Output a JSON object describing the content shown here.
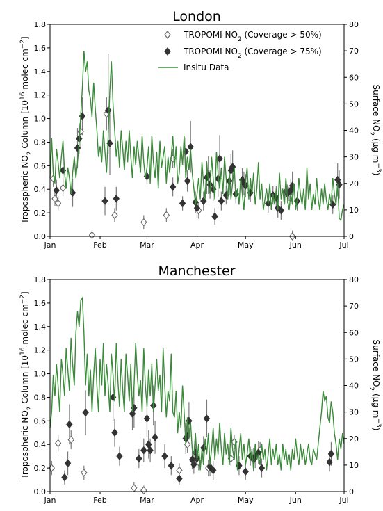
{
  "chart_data": [
    {
      "type": "line",
      "title": "London",
      "ylabel_left": "Tropospheric NO₂ Column [10¹⁶ molec cm⁻²]",
      "ylabel_right": "Surface NO₂ (µg m⁻³)",
      "xlim_days": [
        0,
        182
      ],
      "ylim_left": [
        0,
        1.8
      ],
      "ylim_right": [
        0,
        80
      ],
      "x_ticks": [
        {
          "label": "Jan",
          "day": 0
        },
        {
          "label": "Feb",
          "day": 31
        },
        {
          "label": "Mar",
          "day": 60
        },
        {
          "label": "Apr",
          "day": 91
        },
        {
          "label": "May",
          "day": 121
        },
        {
          "label": "Jun",
          "day": 152
        },
        {
          "label": "Jul",
          "day": 182
        }
      ],
      "y_ticks_left": [
        "0.0",
        "0.2",
        "0.4",
        "0.6",
        "0.8",
        "1.0",
        "1.2",
        "1.4",
        "1.6",
        "1.8"
      ],
      "y_ticks_right": [
        "0",
        "10",
        "20",
        "30",
        "40",
        "50",
        "60",
        "70",
        "80"
      ],
      "legend": [
        {
          "label": "TROPOMI NO",
          "sub": "2",
          "after": " (Coverage > 50%)",
          "marker": "open-diamond"
        },
        {
          "label": "TROPOMI NO",
          "sub": "2",
          "after": " (Coverage > 75%)",
          "marker": "filled-diamond"
        },
        {
          "label": "Insitu Data",
          "marker": "line"
        }
      ],
      "colors": {
        "insitu": "#3a8a3a",
        "filled": "#333333",
        "open_edge": "#666666",
        "errorbar": "#7a7a7a"
      },
      "insitu_day_start": 0,
      "insitu_day_step": 1,
      "insitu": [
        22,
        37,
        24,
        20,
        33,
        28,
        22,
        30,
        36,
        24,
        18,
        26,
        22,
        16,
        24,
        30,
        22,
        28,
        35,
        46,
        56,
        70,
        62,
        66,
        55,
        52,
        45,
        58,
        48,
        40,
        30,
        34,
        28,
        40,
        32,
        24,
        38,
        55,
        66,
        50,
        40,
        30,
        36,
        26,
        40,
        33,
        25,
        36,
        28,
        40,
        30,
        22,
        34,
        27,
        36,
        30,
        24,
        38,
        28,
        22,
        26,
        34,
        20,
        38,
        28,
        22,
        32,
        18,
        36,
        26,
        30,
        34,
        20,
        30,
        24,
        30,
        38,
        26,
        34,
        20,
        24,
        34,
        27,
        38,
        22,
        30,
        25,
        33,
        24,
        18,
        12,
        16,
        22,
        14,
        28,
        20,
        14,
        28,
        20,
        16,
        30,
        22,
        14,
        32,
        24,
        18,
        26,
        16,
        30,
        22,
        14,
        24,
        14,
        20,
        26,
        14,
        18,
        12,
        22,
        16,
        10,
        20,
        26,
        14,
        22,
        16,
        24,
        12,
        18,
        28,
        14,
        20,
        10,
        14,
        18,
        12,
        20,
        10,
        16,
        12,
        18,
        10,
        24,
        14,
        18,
        12,
        22,
        14,
        10,
        16,
        12,
        20,
        10,
        14,
        22,
        16,
        12,
        18,
        10,
        26,
        14,
        20,
        10,
        16,
        12,
        22,
        14,
        10,
        18,
        12,
        20,
        14,
        10,
        16,
        12,
        22,
        16,
        12,
        20,
        7,
        6,
        10,
        12
      ],
      "sat_high": [
        {
          "day": 4,
          "y": 0.39,
          "lo": 0.3,
          "hi": 0.48
        },
        {
          "day": 8,
          "y": 0.56,
          "lo": 0.46,
          "hi": 0.66
        },
        {
          "day": 14,
          "y": 0.37,
          "lo": 0.25,
          "hi": 0.49
        },
        {
          "day": 17,
          "y": 0.75,
          "lo": 0.58,
          "hi": 0.92
        },
        {
          "day": 18,
          "y": 0.83,
          "lo": 0.7,
          "hi": 0.96
        },
        {
          "day": 20,
          "y": 1.02,
          "lo": 0.86,
          "hi": 1.18
        },
        {
          "day": 34,
          "y": 0.3,
          "lo": 0.18,
          "hi": 0.42
        },
        {
          "day": 36,
          "y": 1.07,
          "lo": 0.7,
          "hi": 1.55
        },
        {
          "day": 37,
          "y": 0.79,
          "lo": 0.52,
          "hi": 1.06
        },
        {
          "day": 41,
          "y": 0.32,
          "lo": 0.22,
          "hi": 0.42
        },
        {
          "day": 60,
          "y": 0.51,
          "lo": 0.44,
          "hi": 0.58
        },
        {
          "day": 76,
          "y": 0.42,
          "lo": 0.34,
          "hi": 0.5
        },
        {
          "day": 82,
          "y": 0.28,
          "lo": 0.22,
          "hi": 0.34
        },
        {
          "day": 84,
          "y": 0.72,
          "lo": 0.6,
          "hi": 0.84
        },
        {
          "day": 85,
          "y": 0.47,
          "lo": 0.38,
          "hi": 0.56
        },
        {
          "day": 87,
          "y": 0.76,
          "lo": 0.54,
          "hi": 0.98
        },
        {
          "day": 90,
          "y": 0.29,
          "lo": 0.2,
          "hi": 0.38
        },
        {
          "day": 91,
          "y": 0.24,
          "lo": 0.16,
          "hi": 0.32
        },
        {
          "day": 95,
          "y": 0.3,
          "lo": 0.22,
          "hi": 0.38
        },
        {
          "day": 97,
          "y": 0.5,
          "lo": 0.36,
          "hi": 0.64
        },
        {
          "day": 98,
          "y": 0.52,
          "lo": 0.36,
          "hi": 0.68
        },
        {
          "day": 99,
          "y": 0.44,
          "lo": 0.32,
          "hi": 0.56
        },
        {
          "day": 101,
          "y": 0.4,
          "lo": 0.3,
          "hi": 0.5
        },
        {
          "day": 102,
          "y": 0.17,
          "lo": 0.1,
          "hi": 0.24
        },
        {
          "day": 104,
          "y": 0.49,
          "lo": 0.33,
          "hi": 0.65
        },
        {
          "day": 105,
          "y": 0.66,
          "lo": 0.46,
          "hi": 0.86
        },
        {
          "day": 106,
          "y": 0.3,
          "lo": 0.22,
          "hi": 0.38
        },
        {
          "day": 109,
          "y": 0.35,
          "lo": 0.27,
          "hi": 0.43
        },
        {
          "day": 111,
          "y": 0.47,
          "lo": 0.35,
          "hi": 0.59
        },
        {
          "day": 112,
          "y": 0.56,
          "lo": 0.42,
          "hi": 0.7
        },
        {
          "day": 113,
          "y": 0.59,
          "lo": 0.45,
          "hi": 0.73
        },
        {
          "day": 115,
          "y": 0.36,
          "lo": 0.28,
          "hi": 0.44
        },
        {
          "day": 119,
          "y": 0.48,
          "lo": 0.38,
          "hi": 0.58
        },
        {
          "day": 120,
          "y": 0.45,
          "lo": 0.35,
          "hi": 0.55
        },
        {
          "day": 121,
          "y": 0.43,
          "lo": 0.33,
          "hi": 0.53
        },
        {
          "day": 124,
          "y": 0.37,
          "lo": 0.29,
          "hi": 0.45
        },
        {
          "day": 135,
          "y": 0.28,
          "lo": 0.2,
          "hi": 0.36
        },
        {
          "day": 138,
          "y": 0.35,
          "lo": 0.27,
          "hi": 0.43
        },
        {
          "day": 140,
          "y": 0.33,
          "lo": 0.23,
          "hi": 0.43
        },
        {
          "day": 141,
          "y": 0.24,
          "lo": 0.16,
          "hi": 0.32
        },
        {
          "day": 143,
          "y": 0.22,
          "lo": 0.14,
          "hi": 0.3
        },
        {
          "day": 146,
          "y": 0.38,
          "lo": 0.28,
          "hi": 0.48
        },
        {
          "day": 147,
          "y": 0.36,
          "lo": 0.28,
          "hi": 0.44
        },
        {
          "day": 149,
          "y": 0.39,
          "lo": 0.29,
          "hi": 0.49
        },
        {
          "day": 150,
          "y": 0.43,
          "lo": 0.31,
          "hi": 0.55
        },
        {
          "day": 153,
          "y": 0.3,
          "lo": 0.22,
          "hi": 0.38
        },
        {
          "day": 175,
          "y": 0.27,
          "lo": 0.19,
          "hi": 0.35
        },
        {
          "day": 178,
          "y": 0.48,
          "lo": 0.34,
          "hi": 0.62
        },
        {
          "day": 179,
          "y": 0.44,
          "lo": 0.32,
          "hi": 0.56
        }
      ],
      "sat_low": [
        {
          "day": 2,
          "y": 0.49,
          "lo": 0.42,
          "hi": 0.56
        },
        {
          "day": 3,
          "y": 0.32,
          "lo": 0.26,
          "hi": 0.38
        },
        {
          "day": 5,
          "y": 0.28,
          "lo": 0.22,
          "hi": 0.34
        },
        {
          "day": 8,
          "y": 0.41,
          "lo": 0.34,
          "hi": 0.48
        },
        {
          "day": 19,
          "y": 0.89,
          "lo": 0.76,
          "hi": 1.02
        },
        {
          "day": 35,
          "y": 1.04,
          "lo": 0.9,
          "hi": 1.18
        },
        {
          "day": 26,
          "y": 0.01,
          "lo": 0.0,
          "hi": 0.05
        },
        {
          "day": 40,
          "y": 0.18,
          "lo": 0.12,
          "hi": 0.24
        },
        {
          "day": 58,
          "y": 0.12,
          "lo": 0.06,
          "hi": 0.18
        },
        {
          "day": 72,
          "y": 0.18,
          "lo": 0.12,
          "hi": 0.24
        },
        {
          "day": 76,
          "y": 0.66,
          "lo": 0.58,
          "hi": 0.74
        },
        {
          "day": 92,
          "y": 0.22,
          "lo": 0.15,
          "hi": 0.29
        },
        {
          "day": 150,
          "y": 0.0,
          "lo": 0.0,
          "hi": 0.05
        },
        {
          "day": 148,
          "y": 0.36,
          "lo": 0.3,
          "hi": 0.42
        }
      ]
    },
    {
      "type": "line",
      "title": "Manchester",
      "ylabel_left": "Tropospheric NO₂ Column [10¹⁶ molec cm⁻²]",
      "ylabel_right": "Surface NO₂ (µg m⁻³)",
      "xlim_days": [
        0,
        182
      ],
      "ylim_left": [
        0,
        1.8
      ],
      "ylim_right": [
        0,
        80
      ],
      "x_ticks": [
        {
          "label": "Jan",
          "day": 0
        },
        {
          "label": "Feb",
          "day": 31
        },
        {
          "label": "Mar",
          "day": 60
        },
        {
          "label": "Apr",
          "day": 91
        },
        {
          "label": "May",
          "day": 121
        },
        {
          "label": "Jun",
          "day": 152
        },
        {
          "label": "Jul",
          "day": 182
        }
      ],
      "y_ticks_left": [
        "0.0",
        "0.2",
        "0.4",
        "0.6",
        "0.8",
        "1.0",
        "1.2",
        "1.4",
        "1.6",
        "1.8"
      ],
      "y_ticks_right": [
        "0",
        "10",
        "20",
        "30",
        "40",
        "50",
        "60",
        "70",
        "80"
      ],
      "colors": {
        "insitu": "#3a8a3a",
        "filled": "#333333",
        "open_edge": "#666666",
        "errorbar": "#7a7a7a"
      },
      "insitu_day_start": 0,
      "insitu_day_step": 1,
      "insitu": [
        24,
        30,
        44,
        36,
        48,
        40,
        30,
        50,
        44,
        36,
        54,
        46,
        38,
        58,
        48,
        40,
        60,
        68,
        62,
        72,
        73,
        60,
        40,
        52,
        36,
        46,
        30,
        44,
        54,
        40,
        30,
        50,
        40,
        56,
        36,
        48,
        40,
        30,
        52,
        44,
        34,
        56,
        42,
        32,
        50,
        38,
        30,
        52,
        44,
        34,
        48,
        30,
        40,
        56,
        44,
        36,
        42,
        30,
        54,
        40,
        32,
        46,
        36,
        48,
        30,
        40,
        50,
        38,
        44,
        30,
        54,
        40,
        28,
        38,
        34,
        52,
        30,
        28,
        38,
        22,
        30,
        24,
        40,
        30,
        18,
        28,
        20,
        26,
        16,
        14,
        22,
        12,
        18,
        8,
        16,
        10,
        20,
        14,
        22,
        10,
        16,
        24,
        12,
        20,
        14,
        26,
        16,
        10,
        22,
        14,
        18,
        10,
        24,
        16,
        12,
        20,
        8,
        16,
        22,
        12,
        18,
        10,
        14,
        20,
        12,
        16,
        8,
        18,
        12,
        14,
        10,
        18,
        12,
        16,
        8,
        14,
        20,
        10,
        16,
        12,
        18,
        10,
        14,
        8,
        18,
        12,
        16,
        10,
        14,
        8,
        16,
        12,
        20,
        14,
        10,
        18,
        12,
        16,
        10,
        14,
        18,
        12,
        10,
        16,
        14,
        12,
        18,
        24,
        30,
        38,
        34,
        36,
        28,
        26,
        34,
        30,
        22,
        18,
        12,
        20,
        16,
        22,
        18
      ],
      "sat_high": [
        {
          "day": 9,
          "y": 0.12,
          "lo": 0.06,
          "hi": 0.18
        },
        {
          "day": 11,
          "y": 0.24,
          "lo": 0.14,
          "hi": 0.34
        },
        {
          "day": 12,
          "y": 0.57,
          "lo": 0.4,
          "hi": 0.74
        },
        {
          "day": 22,
          "y": 0.67,
          "lo": 0.48,
          "hi": 0.86
        },
        {
          "day": 39,
          "y": 0.8,
          "lo": 0.6,
          "hi": 1.0
        },
        {
          "day": 40,
          "y": 0.5,
          "lo": 0.38,
          "hi": 0.62
        },
        {
          "day": 43,
          "y": 0.3,
          "lo": 0.22,
          "hi": 0.38
        },
        {
          "day": 51,
          "y": 0.66,
          "lo": 0.52,
          "hi": 0.8
        },
        {
          "day": 52,
          "y": 0.71,
          "lo": 0.54,
          "hi": 0.88
        },
        {
          "day": 55,
          "y": 0.28,
          "lo": 0.2,
          "hi": 0.36
        },
        {
          "day": 58,
          "y": 0.35,
          "lo": 0.25,
          "hi": 0.45
        },
        {
          "day": 60,
          "y": 0.62,
          "lo": 0.46,
          "hi": 0.78
        },
        {
          "day": 61,
          "y": 0.4,
          "lo": 0.28,
          "hi": 0.52
        },
        {
          "day": 62,
          "y": 0.35,
          "lo": 0.25,
          "hi": 0.45
        },
        {
          "day": 64,
          "y": 0.73,
          "lo": 0.56,
          "hi": 0.9
        },
        {
          "day": 65,
          "y": 0.46,
          "lo": 0.32,
          "hi": 0.6
        },
        {
          "day": 71,
          "y": 0.3,
          "lo": 0.2,
          "hi": 0.4
        },
        {
          "day": 75,
          "y": 0.22,
          "lo": 0.14,
          "hi": 0.3
        },
        {
          "day": 80,
          "y": 0.11,
          "lo": 0.06,
          "hi": 0.16
        },
        {
          "day": 84,
          "y": 0.45,
          "lo": 0.32,
          "hi": 0.58
        },
        {
          "day": 85,
          "y": 0.47,
          "lo": 0.35,
          "hi": 0.59
        },
        {
          "day": 86,
          "y": 0.6,
          "lo": 0.44,
          "hi": 0.76
        },
        {
          "day": 88,
          "y": 0.27,
          "lo": 0.19,
          "hi": 0.35
        },
        {
          "day": 89,
          "y": 0.23,
          "lo": 0.15,
          "hi": 0.31
        },
        {
          "day": 90,
          "y": 0.33,
          "lo": 0.23,
          "hi": 0.43
        },
        {
          "day": 91,
          "y": 0.28,
          "lo": 0.2,
          "hi": 0.36
        },
        {
          "day": 95,
          "y": 0.37,
          "lo": 0.27,
          "hi": 0.47
        },
        {
          "day": 97,
          "y": 0.62,
          "lo": 0.46,
          "hi": 0.78
        },
        {
          "day": 99,
          "y": 0.21,
          "lo": 0.13,
          "hi": 0.29
        },
        {
          "day": 101,
          "y": 0.18,
          "lo": 0.1,
          "hi": 0.26
        },
        {
          "day": 117,
          "y": 0.22,
          "lo": 0.14,
          "hi": 0.3
        },
        {
          "day": 121,
          "y": 0.17,
          "lo": 0.1,
          "hi": 0.24
        },
        {
          "day": 124,
          "y": 0.3,
          "lo": 0.22,
          "hi": 0.38
        },
        {
          "day": 126,
          "y": 0.27,
          "lo": 0.17,
          "hi": 0.37
        },
        {
          "day": 127,
          "y": 0.3,
          "lo": 0.2,
          "hi": 0.4
        },
        {
          "day": 129,
          "y": 0.33,
          "lo": 0.23,
          "hi": 0.43
        },
        {
          "day": 131,
          "y": 0.2,
          "lo": 0.12,
          "hi": 0.28
        },
        {
          "day": 173,
          "y": 0.25,
          "lo": 0.17,
          "hi": 0.33
        },
        {
          "day": 174,
          "y": 0.32,
          "lo": 0.22,
          "hi": 0.42
        }
      ],
      "sat_low": [
        {
          "day": 1,
          "y": 0.2,
          "lo": 0.14,
          "hi": 0.26
        },
        {
          "day": 5,
          "y": 0.41,
          "lo": 0.34,
          "hi": 0.48
        },
        {
          "day": 13,
          "y": 0.44,
          "lo": 0.36,
          "hi": 0.52
        },
        {
          "day": 21,
          "y": 0.16,
          "lo": 0.1,
          "hi": 0.22
        },
        {
          "day": 52,
          "y": 0.03,
          "lo": 0.0,
          "hi": 0.08
        },
        {
          "day": 58,
          "y": 0.01,
          "lo": 0.0,
          "hi": 0.05
        },
        {
          "day": 80,
          "y": 0.18,
          "lo": 0.12,
          "hi": 0.24
        },
        {
          "day": 85,
          "y": 0.4,
          "lo": 0.33,
          "hi": 0.47
        },
        {
          "day": 92,
          "y": 0.25,
          "lo": 0.18,
          "hi": 0.32
        },
        {
          "day": 98,
          "y": 0.2,
          "lo": 0.13,
          "hi": 0.27
        },
        {
          "day": 112,
          "y": 0.28,
          "lo": 0.22,
          "hi": 0.34
        },
        {
          "day": 114,
          "y": 0.42,
          "lo": 0.36,
          "hi": 0.48
        },
        {
          "day": 130,
          "y": 0.35,
          "lo": 0.28,
          "hi": 0.42
        }
      ]
    }
  ]
}
